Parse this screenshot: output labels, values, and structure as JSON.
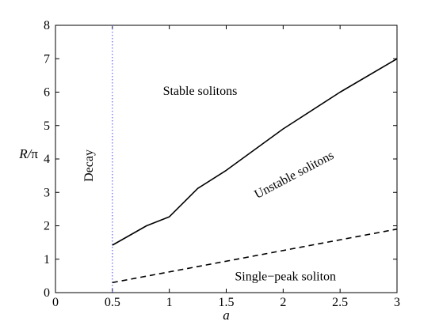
{
  "chart_data": {
    "type": "line",
    "title": "",
    "xlabel": "a",
    "ylabel_main": "R/",
    "ylabel_symbol": "π",
    "xlim": [
      0,
      3
    ],
    "ylim": [
      0,
      8
    ],
    "x_ticks": [
      0,
      0.5,
      1,
      1.5,
      2,
      2.5,
      3
    ],
    "x_tick_labels": [
      "0",
      "0.5",
      "1",
      "1.5",
      "2",
      "2.5",
      "3"
    ],
    "y_ticks": [
      0,
      1,
      2,
      3,
      4,
      5,
      6,
      7,
      8
    ],
    "y_tick_labels": [
      "0",
      "1",
      "2",
      "3",
      "4",
      "5",
      "6",
      "7",
      "8"
    ],
    "grid": false,
    "legend": "none",
    "series": [
      {
        "style": "solid",
        "color": "#000000",
        "x": [
          0.5,
          0.8,
          1.0,
          1.25,
          1.5,
          2.0,
          2.5,
          3.0
        ],
        "y": [
          1.42,
          2.0,
          2.27,
          3.12,
          3.66,
          4.9,
          6.0,
          7.0
        ]
      },
      {
        "style": "dashed",
        "color": "#000000",
        "x": [
          0.5,
          3.0
        ],
        "y": [
          0.3,
          1.9
        ]
      }
    ],
    "reference_lines": [
      {
        "orientation": "vertical",
        "x": 0.5,
        "style": "dotted",
        "color": "#6666ff"
      }
    ],
    "annotations": [
      {
        "text": "Stable solitons",
        "x": 1.27,
        "y": 6.0,
        "rotation": 0
      },
      {
        "text": "Unstable solitons",
        "x": 2.1,
        "y": 3.5,
        "rotation": -28
      },
      {
        "text": "Single−peak soliton",
        "x": 2.02,
        "y": 0.45,
        "rotation": 0
      },
      {
        "text": "Decay",
        "x": 0.3,
        "y": 3.8,
        "rotation": -90
      }
    ]
  }
}
